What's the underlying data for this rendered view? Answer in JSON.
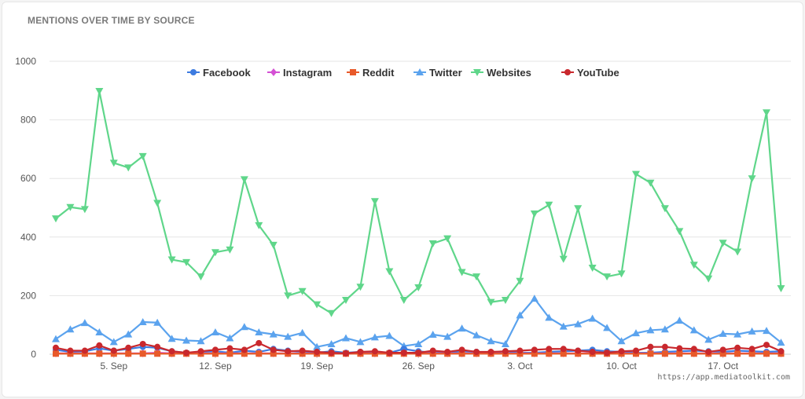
{
  "header": {
    "title": "MENTIONS OVER TIME BY SOURCE"
  },
  "footer": {
    "credit": "https://app.mediatoolkit.com"
  },
  "chart_data": {
    "type": "line",
    "x_start": "2023-09-01",
    "x_tick_labels": [
      "5. Sep",
      "12. Sep",
      "19. Sep",
      "26. Sep",
      "3. Oct",
      "10. Oct",
      "17. Oct"
    ],
    "ylim": [
      0,
      1000
    ],
    "y_ticks": [
      0,
      200,
      400,
      600,
      800,
      1000
    ],
    "y_tick_labels": [
      "0",
      "200",
      "400",
      "600",
      "800",
      "1000"
    ],
    "grid": true,
    "legend_position": "top-center",
    "series": [
      {
        "name": "Facebook",
        "color": "#3d7be0",
        "marker": "circle",
        "values": [
          15,
          8,
          10,
          20,
          12,
          18,
          25,
          22,
          10,
          5,
          8,
          10,
          5,
          12,
          8,
          18,
          12,
          8,
          5,
          10,
          5,
          8,
          5,
          5,
          18,
          10,
          5,
          5,
          10,
          8,
          5,
          10,
          5,
          5,
          8,
          10,
          12,
          15,
          10,
          8,
          5,
          5,
          8,
          10,
          12,
          10,
          8,
          12,
          10,
          8,
          10,
          15,
          10,
          5,
          20,
          5
        ]
      },
      {
        "name": "Instagram",
        "color": "#d450d4",
        "marker": "diamond",
        "values": [
          3,
          3,
          3,
          3,
          3,
          3,
          3,
          5,
          3,
          3,
          3,
          3,
          3,
          3,
          3,
          3,
          3,
          3,
          3,
          3,
          3,
          3,
          3,
          3,
          3,
          3,
          3,
          3,
          3,
          3,
          3,
          3,
          3,
          3,
          3,
          3,
          3,
          3,
          3,
          3,
          3,
          3,
          3,
          3,
          3,
          3,
          3,
          3,
          3,
          3,
          3,
          3,
          3,
          3,
          3,
          3
        ]
      },
      {
        "name": "Reddit",
        "color": "#e85a2a",
        "marker": "square",
        "values": [
          2,
          2,
          2,
          2,
          2,
          2,
          2,
          2,
          2,
          2,
          2,
          2,
          2,
          2,
          2,
          2,
          2,
          2,
          2,
          2,
          2,
          2,
          2,
          2,
          2,
          2,
          2,
          2,
          2,
          2,
          2,
          2,
          2,
          2,
          2,
          2,
          2,
          2,
          2,
          2,
          2,
          2,
          2,
          2,
          2,
          2,
          2,
          2,
          2,
          2,
          2,
          2,
          2,
          2,
          2,
          2
        ]
      },
      {
        "name": "Twitter",
        "color": "#5ba3ee",
        "marker": "triangle-up",
        "values": [
          52,
          85,
          107,
          75,
          42,
          68,
          110,
          108,
          53,
          47,
          45,
          75,
          55,
          93,
          75,
          68,
          60,
          73,
          25,
          35,
          55,
          42,
          58,
          63,
          28,
          35,
          67,
          60,
          88,
          65,
          45,
          35,
          133,
          190,
          125,
          95,
          103,
          122,
          90,
          45,
          72,
          82,
          85,
          115,
          82,
          50,
          70,
          68,
          78,
          80,
          40
        ]
      },
      {
        "name": "Websites",
        "color": "#5fd68a",
        "marker": "triangle-down",
        "values": [
          463,
          502,
          495,
          898,
          653,
          637,
          676,
          516,
          323,
          314,
          265,
          348,
          357,
          597,
          440,
          373,
          200,
          215,
          170,
          140,
          185,
          230,
          522,
          283,
          185,
          228,
          378,
          395,
          280,
          265,
          178,
          185,
          250,
          480,
          510,
          325,
          498,
          295,
          265,
          275,
          615,
          585,
          498,
          420,
          305,
          258,
          380,
          350,
          600,
          825,
          225
        ]
      },
      {
        "name": "YouTube",
        "color": "#c9282d",
        "marker": "circle",
        "values": [
          22,
          12,
          12,
          30,
          12,
          22,
          35,
          25,
          10,
          5,
          10,
          15,
          20,
          15,
          38,
          15,
          10,
          12,
          8,
          5,
          3,
          8,
          10,
          5,
          5,
          5,
          12,
          8,
          15,
          8,
          8,
          10,
          12,
          15,
          18,
          18,
          12,
          8,
          5,
          10,
          12,
          25,
          25,
          20,
          18,
          8,
          15,
          22,
          18,
          32,
          10
        ]
      }
    ]
  }
}
